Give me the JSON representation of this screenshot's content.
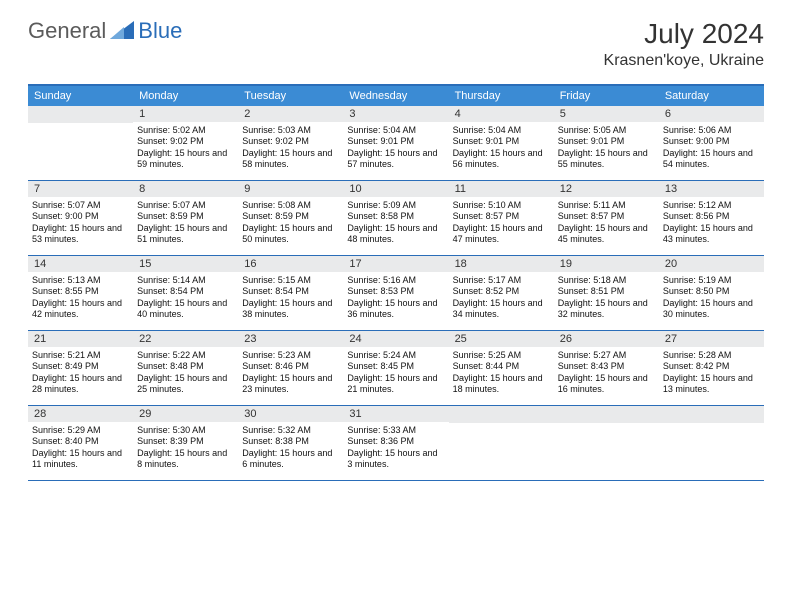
{
  "logo": {
    "general": "General",
    "blue": "Blue"
  },
  "title": "July 2024",
  "location": "Krasnen'koye, Ukraine",
  "colors": {
    "header_bg": "#3b8bd4",
    "border": "#2a6db8",
    "daynum_bg": "#e9eaeb",
    "logo_gray": "#5b5b5b",
    "logo_blue": "#2a6db8"
  },
  "weekdays": [
    "Sunday",
    "Monday",
    "Tuesday",
    "Wednesday",
    "Thursday",
    "Friday",
    "Saturday"
  ],
  "weeks": [
    [
      null,
      {
        "n": "1",
        "sr": "5:02 AM",
        "ss": "9:02 PM",
        "dl": "15 hours and 59 minutes."
      },
      {
        "n": "2",
        "sr": "5:03 AM",
        "ss": "9:02 PM",
        "dl": "15 hours and 58 minutes."
      },
      {
        "n": "3",
        "sr": "5:04 AM",
        "ss": "9:01 PM",
        "dl": "15 hours and 57 minutes."
      },
      {
        "n": "4",
        "sr": "5:04 AM",
        "ss": "9:01 PM",
        "dl": "15 hours and 56 minutes."
      },
      {
        "n": "5",
        "sr": "5:05 AM",
        "ss": "9:01 PM",
        "dl": "15 hours and 55 minutes."
      },
      {
        "n": "6",
        "sr": "5:06 AM",
        "ss": "9:00 PM",
        "dl": "15 hours and 54 minutes."
      }
    ],
    [
      {
        "n": "7",
        "sr": "5:07 AM",
        "ss": "9:00 PM",
        "dl": "15 hours and 53 minutes."
      },
      {
        "n": "8",
        "sr": "5:07 AM",
        "ss": "8:59 PM",
        "dl": "15 hours and 51 minutes."
      },
      {
        "n": "9",
        "sr": "5:08 AM",
        "ss": "8:59 PM",
        "dl": "15 hours and 50 minutes."
      },
      {
        "n": "10",
        "sr": "5:09 AM",
        "ss": "8:58 PM",
        "dl": "15 hours and 48 minutes."
      },
      {
        "n": "11",
        "sr": "5:10 AM",
        "ss": "8:57 PM",
        "dl": "15 hours and 47 minutes."
      },
      {
        "n": "12",
        "sr": "5:11 AM",
        "ss": "8:57 PM",
        "dl": "15 hours and 45 minutes."
      },
      {
        "n": "13",
        "sr": "5:12 AM",
        "ss": "8:56 PM",
        "dl": "15 hours and 43 minutes."
      }
    ],
    [
      {
        "n": "14",
        "sr": "5:13 AM",
        "ss": "8:55 PM",
        "dl": "15 hours and 42 minutes."
      },
      {
        "n": "15",
        "sr": "5:14 AM",
        "ss": "8:54 PM",
        "dl": "15 hours and 40 minutes."
      },
      {
        "n": "16",
        "sr": "5:15 AM",
        "ss": "8:54 PM",
        "dl": "15 hours and 38 minutes."
      },
      {
        "n": "17",
        "sr": "5:16 AM",
        "ss": "8:53 PM",
        "dl": "15 hours and 36 minutes."
      },
      {
        "n": "18",
        "sr": "5:17 AM",
        "ss": "8:52 PM",
        "dl": "15 hours and 34 minutes."
      },
      {
        "n": "19",
        "sr": "5:18 AM",
        "ss": "8:51 PM",
        "dl": "15 hours and 32 minutes."
      },
      {
        "n": "20",
        "sr": "5:19 AM",
        "ss": "8:50 PM",
        "dl": "15 hours and 30 minutes."
      }
    ],
    [
      {
        "n": "21",
        "sr": "5:21 AM",
        "ss": "8:49 PM",
        "dl": "15 hours and 28 minutes."
      },
      {
        "n": "22",
        "sr": "5:22 AM",
        "ss": "8:48 PM",
        "dl": "15 hours and 25 minutes."
      },
      {
        "n": "23",
        "sr": "5:23 AM",
        "ss": "8:46 PM",
        "dl": "15 hours and 23 minutes."
      },
      {
        "n": "24",
        "sr": "5:24 AM",
        "ss": "8:45 PM",
        "dl": "15 hours and 21 minutes."
      },
      {
        "n": "25",
        "sr": "5:25 AM",
        "ss": "8:44 PM",
        "dl": "15 hours and 18 minutes."
      },
      {
        "n": "26",
        "sr": "5:27 AM",
        "ss": "8:43 PM",
        "dl": "15 hours and 16 minutes."
      },
      {
        "n": "27",
        "sr": "5:28 AM",
        "ss": "8:42 PM",
        "dl": "15 hours and 13 minutes."
      }
    ],
    [
      {
        "n": "28",
        "sr": "5:29 AM",
        "ss": "8:40 PM",
        "dl": "15 hours and 11 minutes."
      },
      {
        "n": "29",
        "sr": "5:30 AM",
        "ss": "8:39 PM",
        "dl": "15 hours and 8 minutes."
      },
      {
        "n": "30",
        "sr": "5:32 AM",
        "ss": "8:38 PM",
        "dl": "15 hours and 6 minutes."
      },
      {
        "n": "31",
        "sr": "5:33 AM",
        "ss": "8:36 PM",
        "dl": "15 hours and 3 minutes."
      },
      null,
      null,
      null
    ]
  ],
  "labels": {
    "sunrise": "Sunrise: ",
    "sunset": "Sunset: ",
    "daylight": "Daylight: "
  }
}
